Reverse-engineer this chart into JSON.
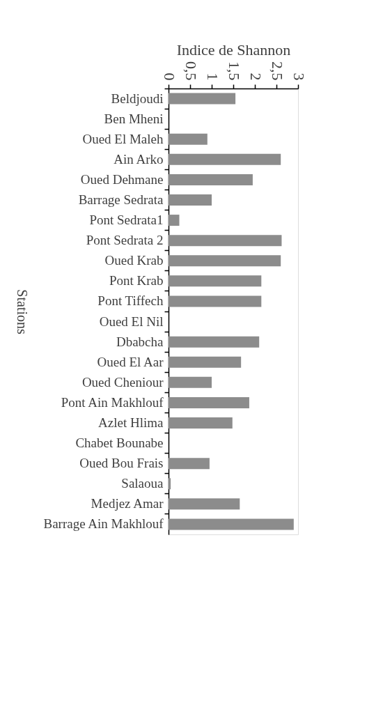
{
  "chart_data": {
    "type": "bar",
    "orientation": "horizontal",
    "xlabel": "Indice de Shannon",
    "ylabel": "Stations",
    "categories": [
      "Beldjoudi",
      "Ben Mheni",
      "Oued El Maleh",
      "Ain Arko",
      "Oued Dehmane",
      "Barrage Sedrata",
      "Pont Sedrata1",
      "Pont Sedrata 2",
      "Oued Krab",
      "Pont Krab",
      "Pont Tiffech",
      "Oued El Nil",
      "Dbabcha",
      "Oued El Aar",
      "Oued Cheniour",
      "Pont Ain Makhlouf",
      "Azlet Hlima",
      "Chabet Bounabe",
      "Oued Bou Frais",
      "Salaoua",
      "Medjez Amar",
      "Barrage Ain Makhlouf"
    ],
    "values": [
      1.55,
      0,
      0.9,
      2.6,
      1.95,
      1.0,
      0.25,
      2.62,
      2.6,
      2.15,
      2.15,
      0,
      2.1,
      1.68,
      1.0,
      1.87,
      1.48,
      0,
      0.95,
      0.05,
      1.65,
      2.9
    ],
    "color": "#8c8c8c",
    "xlim": [
      0,
      3
    ],
    "xticks": [
      0,
      {
        "value": 0.5,
        "label": "0,5"
      },
      1,
      {
        "value": 1.5,
        "label": "1,5"
      },
      2,
      {
        "value": 2.5,
        "label": "2,5"
      },
      3
    ],
    "grid": false
  }
}
